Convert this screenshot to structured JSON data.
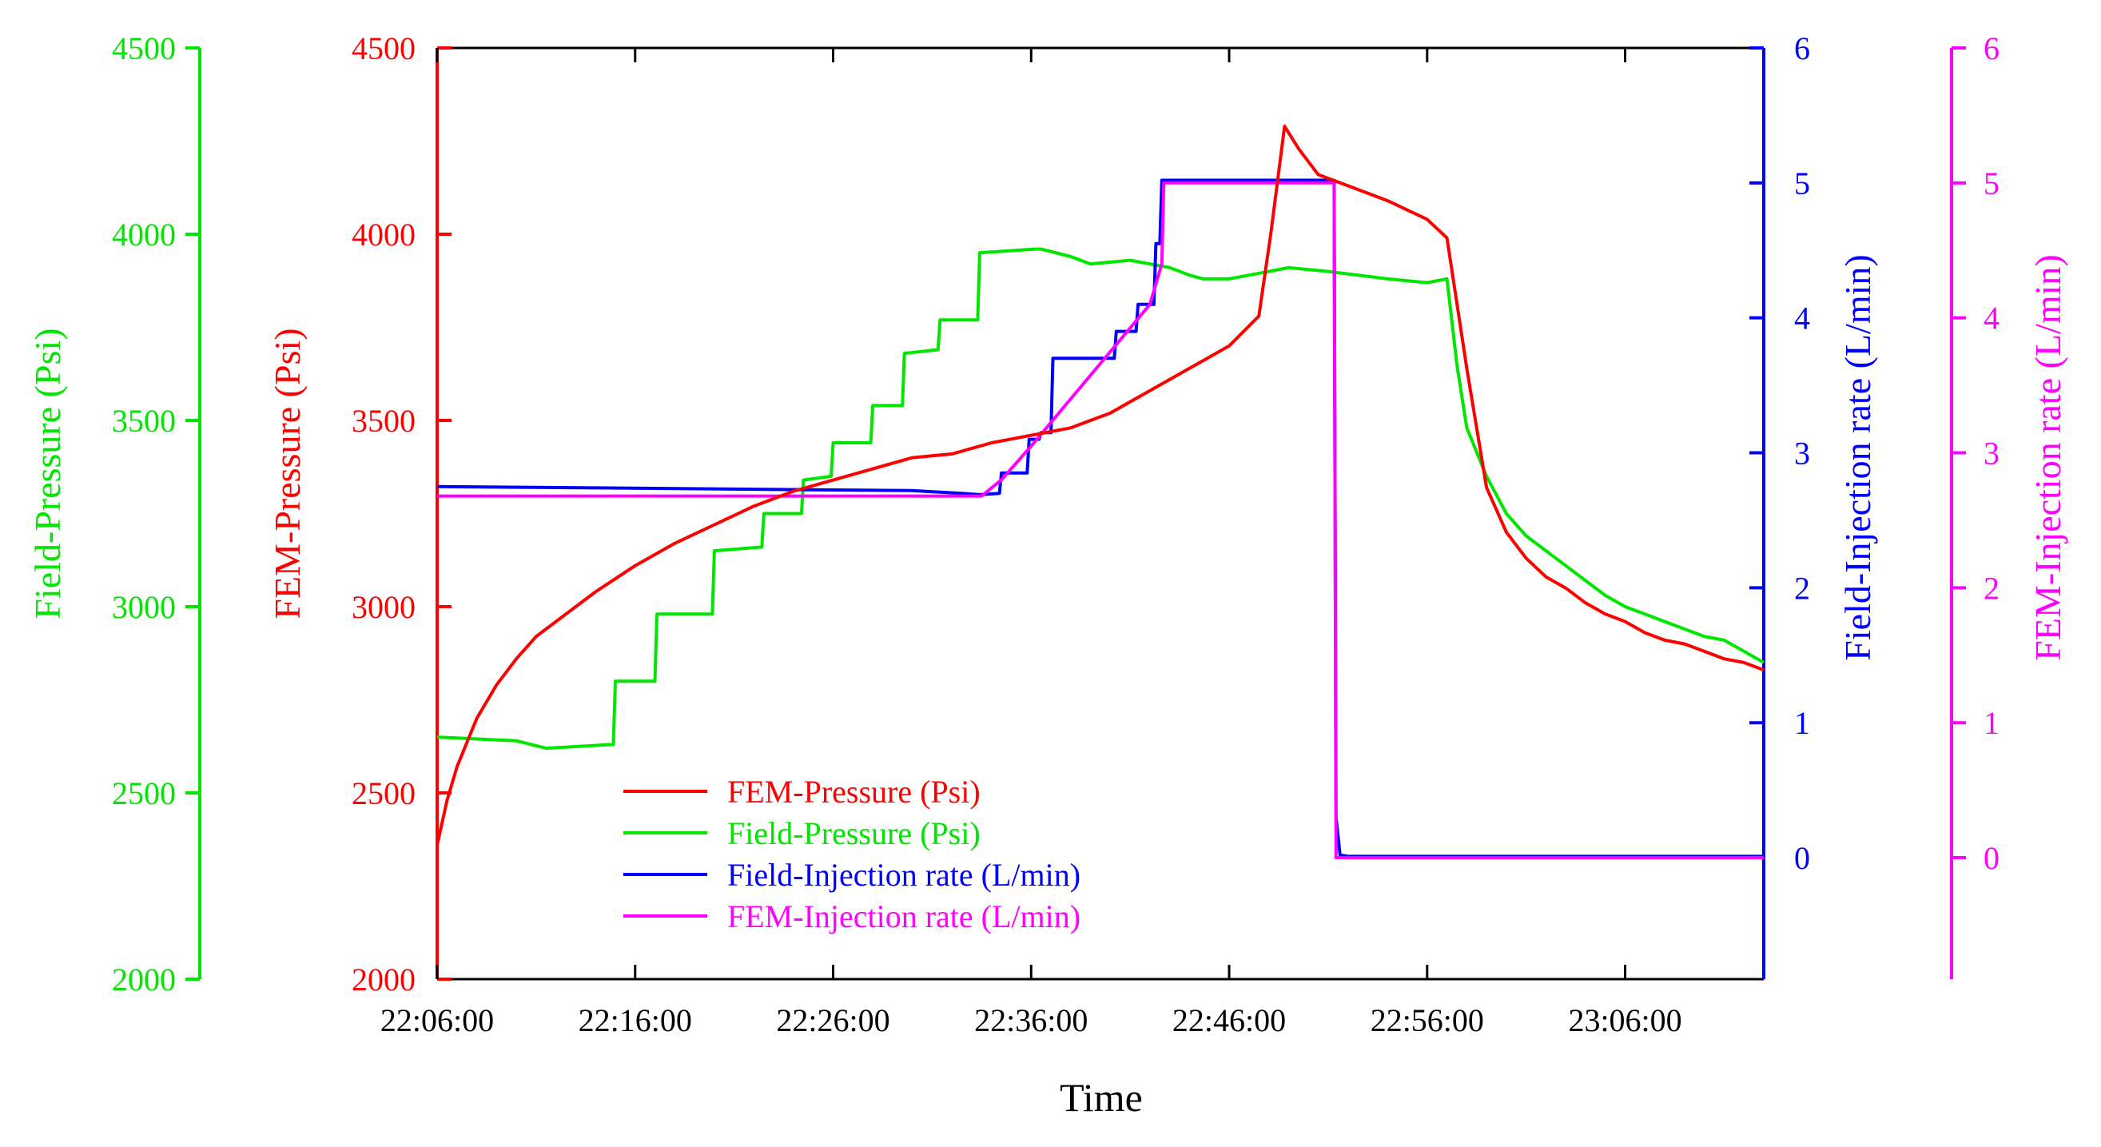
{
  "chart_data": {
    "type": "line",
    "xlabel": "Time",
    "x_ticks": [
      "22:06:00",
      "22:16:00",
      "22:26:00",
      "22:36:00",
      "22:46:00",
      "22:56:00",
      "23:06:00"
    ],
    "x_range_min": [
      0,
      67
    ],
    "axes": {
      "field_pressure": {
        "label": "Field-Pressure (Psi)",
        "color": "#00e600",
        "range": [
          2000,
          4500
        ],
        "ticks": [
          "2000",
          "2500",
          "3000",
          "3500",
          "4000",
          "4500"
        ]
      },
      "fem_pressure": {
        "label": "FEM-Pressure (Psi)",
        "color": "#ff0000",
        "range": [
          2000,
          4500
        ],
        "ticks": [
          "2000",
          "2500",
          "3000",
          "3500",
          "4000",
          "4500"
        ]
      },
      "field_rate": {
        "label": "Field-Injection rate (L/min)",
        "color": "#0000ff",
        "range": [
          -0.9,
          6
        ],
        "ticks": [
          "0",
          "1",
          "2",
          "3",
          "4",
          "5",
          "6"
        ]
      },
      "fem_rate": {
        "label": "FEM-Injection rate (L/min)",
        "color": "#ff00ff",
        "range": [
          -0.9,
          6
        ],
        "ticks": [
          "0",
          "1",
          "2",
          "3",
          "4",
          "5",
          "6"
        ]
      }
    },
    "legend": [
      "FEM-Pressure (Psi)",
      "Field-Pressure (Psi)",
      "Field-Injection rate (L/min)",
      "FEM-Injection rate (L/min)"
    ],
    "series": [
      {
        "name": "FEM-Pressure (Psi)",
        "axis": "fem_pressure",
        "color": "#ff0000",
        "x": [
          0,
          0.5,
          1,
          2,
          3,
          4,
          5,
          6,
          8,
          10,
          12,
          14,
          16,
          18,
          20,
          22,
          24,
          26,
          28,
          30,
          32,
          34,
          36,
          38,
          40,
          41.5,
          42.1,
          42.8,
          43.5,
          44.5,
          46,
          48,
          50,
          51,
          52,
          53,
          54,
          55,
          56,
          57,
          58,
          59,
          60,
          61,
          62,
          63,
          64,
          65,
          66,
          67
        ],
        "values": [
          2360,
          2480,
          2570,
          2700,
          2790,
          2860,
          2920,
          2960,
          3040,
          3110,
          3170,
          3220,
          3270,
          3310,
          3340,
          3370,
          3400,
          3410,
          3440,
          3460,
          3480,
          3520,
          3580,
          3640,
          3700,
          3780,
          4000,
          4290,
          4230,
          4160,
          4130,
          4090,
          4040,
          3990,
          3640,
          3320,
          3200,
          3130,
          3080,
          3050,
          3010,
          2980,
          2960,
          2930,
          2910,
          2900,
          2880,
          2860,
          2850,
          2830
        ]
      },
      {
        "name": "Field-Pressure (Psi)",
        "axis": "field_pressure",
        "color": "#00e600",
        "x": [
          0,
          4,
          5.5,
          8.9,
          9,
          11,
          11.1,
          13.9,
          14,
          16.4,
          16.5,
          18.4,
          18.5,
          19.9,
          20,
          21.9,
          22,
          23.5,
          23.6,
          25.3,
          25.4,
          27.3,
          27.4,
          30.2,
          30.3,
          30.5,
          32,
          33,
          35,
          37,
          38,
          38.7,
          40,
          41,
          43,
          45,
          48,
          50,
          51,
          51.5,
          52,
          53,
          54,
          55,
          56,
          57,
          58,
          59,
          60,
          61,
          62,
          63,
          64,
          65,
          66,
          67
        ],
        "values": [
          2650,
          2640,
          2620,
          2630,
          2800,
          2800,
          2980,
          2980,
          3150,
          3160,
          3250,
          3250,
          3340,
          3350,
          3440,
          3440,
          3540,
          3540,
          3680,
          3690,
          3770,
          3770,
          3950,
          3960,
          3960,
          3960,
          3940,
          3920,
          3930,
          3910,
          3890,
          3880,
          3880,
          3890,
          3910,
          3900,
          3880,
          3870,
          3880,
          3650,
          3480,
          3350,
          3250,
          3190,
          3150,
          3110,
          3070,
          3030,
          3000,
          2980,
          2960,
          2940,
          2920,
          2910,
          2880,
          2850
        ]
      },
      {
        "name": "Field-Injection rate (L/min)",
        "axis": "field_rate",
        "color": "#0000ff",
        "x": [
          0,
          8,
          16,
          24,
          26.5,
          27.4,
          28.4,
          28.5,
          28.7,
          29.8,
          29.9,
          30.4,
          30.5,
          31,
          31.1,
          34.2,
          34.3,
          35.3,
          35.4,
          36.2,
          36.3,
          36.5,
          36.6,
          37.6,
          37.7,
          45.3,
          45.4,
          45.6,
          46,
          67
        ],
        "values": [
          2.75,
          2.74,
          2.73,
          2.72,
          2.7,
          2.69,
          2.7,
          2.85,
          2.85,
          2.85,
          3.1,
          3.1,
          3.15,
          3.15,
          3.7,
          3.7,
          3.9,
          3.9,
          4.1,
          4.1,
          4.55,
          4.55,
          5.02,
          5.02,
          5.02,
          5.02,
          0.3,
          0.02,
          0.01,
          0.01
        ]
      },
      {
        "name": "FEM-Injection rate (L/min)",
        "axis": "fem_rate",
        "color": "#ff00ff",
        "x": [
          0,
          27.5,
          28.5,
          30,
          32,
          34,
          36,
          36.6,
          36.7,
          45.3,
          45.4,
          67
        ],
        "values": [
          2.68,
          2.68,
          2.8,
          3.05,
          3.4,
          3.75,
          4.1,
          4.4,
          5.0,
          5.0,
          0,
          0
        ]
      }
    ]
  }
}
